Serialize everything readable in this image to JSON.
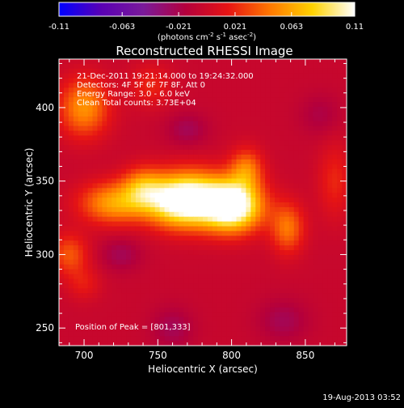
{
  "colorbar": {
    "tick_labels": [
      "-0.11",
      "-0.063",
      "-0.021",
      "0.021",
      "0.063",
      "0.11"
    ],
    "tick_values": [
      -0.11,
      -0.063,
      -0.021,
      0.021,
      0.063,
      0.11
    ],
    "range": [
      -0.11,
      0.11
    ],
    "unit_label": "(photons cm",
    "unit_sup1": "-2",
    "unit_mid": " s",
    "unit_sup2": "-1",
    "unit_end": " asec",
    "unit_sup3": "-2",
    "unit_close": ")",
    "colors": [
      "#0000ff",
      "#5a00b4",
      "#7a1a9a",
      "#b4003c",
      "#e61414",
      "#ff7800",
      "#ffd200",
      "#ffffff"
    ]
  },
  "chart_data": {
    "type": "heatmap",
    "title": "Reconstructed RHESSI Image",
    "xlabel": "Heliocentric X (arcsec)",
    "ylabel": "Heliocentric Y (arcsec)",
    "xlim": [
      683,
      878
    ],
    "ylim": [
      238,
      433
    ],
    "x_ticks": [
      700,
      750,
      800,
      850
    ],
    "y_ticks": [
      250,
      300,
      350,
      400
    ],
    "x_tick_labels": [
      "700",
      "750",
      "800",
      "850"
    ],
    "y_tick_labels": [
      "250",
      "300",
      "350",
      "400"
    ],
    "peak": [
      801,
      333
    ],
    "background_color": "#4a1a8c",
    "blobs": [
      {
        "x": 801,
        "y": 333,
        "amp": 0.13,
        "sx": 14,
        "sy": 12
      },
      {
        "x": 775,
        "y": 338,
        "amp": 0.09,
        "sx": 16,
        "sy": 13
      },
      {
        "x": 760,
        "y": 336,
        "amp": 0.07,
        "sx": 14,
        "sy": 12
      },
      {
        "x": 720,
        "y": 335,
        "amp": 0.065,
        "sx": 16,
        "sy": 10
      },
      {
        "x": 740,
        "y": 345,
        "amp": 0.055,
        "sx": 10,
        "sy": 10
      },
      {
        "x": 810,
        "y": 358,
        "amp": 0.05,
        "sx": 8,
        "sy": 10
      },
      {
        "x": 838,
        "y": 318,
        "amp": 0.05,
        "sx": 8,
        "sy": 12
      },
      {
        "x": 700,
        "y": 400,
        "amp": 0.06,
        "sx": 12,
        "sy": 14
      },
      {
        "x": 745,
        "y": 415,
        "amp": 0.025,
        "sx": 10,
        "sy": 10
      },
      {
        "x": 690,
        "y": 300,
        "amp": 0.04,
        "sx": 9,
        "sy": 10
      },
      {
        "x": 700,
        "y": 280,
        "amp": 0.02,
        "sx": 8,
        "sy": 8
      },
      {
        "x": 870,
        "y": 350,
        "amp": 0.025,
        "sx": 8,
        "sy": 18
      },
      {
        "x": 760,
        "y": 250,
        "amp": -0.02,
        "sx": 10,
        "sy": 10
      },
      {
        "x": 835,
        "y": 255,
        "amp": -0.02,
        "sx": 12,
        "sy": 10
      },
      {
        "x": 860,
        "y": 395,
        "amp": -0.015,
        "sx": 10,
        "sy": 10
      },
      {
        "x": 770,
        "y": 385,
        "amp": -0.02,
        "sx": 10,
        "sy": 8
      },
      {
        "x": 725,
        "y": 300,
        "amp": -0.02,
        "sx": 10,
        "sy": 8
      }
    ],
    "annotations": [
      "21-Dec-2011 19:21:14.000 to 19:24:32.000",
      "Detectors: 4F 5F 6F 7F 8F, Att 0",
      "Energy Range: 3.0 - 6.0 keV",
      "Clean      Total counts: 3.73E+04"
    ],
    "peak_label": "Position of Peak = [801,333]"
  },
  "footer": {
    "timestamp": "19-Aug-2013 03:52"
  }
}
